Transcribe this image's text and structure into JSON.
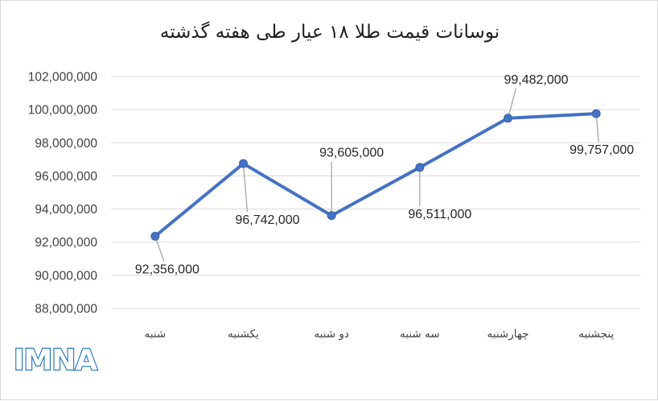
{
  "chart_data": {
    "type": "line",
    "title": "نوسانات قیمت طلا ۱۸ عیار طی هفته گذشته",
    "categories": [
      "شنبه",
      "یکشنبه",
      "دو شنبه",
      "سه شنبه",
      "چهارشنبه",
      "پنجشنبه"
    ],
    "values": [
      92356000,
      96742000,
      93605000,
      96511000,
      99482000,
      99757000
    ],
    "data_labels": [
      "92,356,000",
      "96,742,000",
      "93,605,000",
      "96,511,000",
      "99,482,000",
      "99,757,000"
    ],
    "y_ticks": [
      "88,000,000",
      "90,000,000",
      "92,000,000",
      "94,000,000",
      "96,000,000",
      "98,000,000",
      "100,000,000",
      "102,000,000"
    ],
    "ylim": [
      88000000,
      102000000
    ],
    "grid": true,
    "legend": "none",
    "line_color": "#4472c4"
  },
  "logo": {
    "text": "IMNA",
    "color": "#1a6fc0"
  }
}
